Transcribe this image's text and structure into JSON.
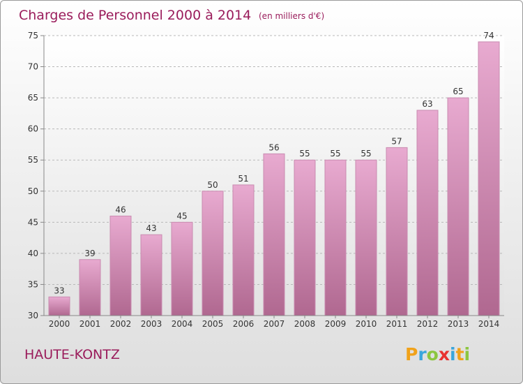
{
  "title": "Charges de Personnel 2000 à 2014",
  "subtitle": "(en milliers d'€)",
  "location": "HAUTE-KONTZ",
  "logo": {
    "letters": [
      "P",
      "r",
      "o",
      "x",
      "i",
      "t",
      "i"
    ],
    "colors": [
      "#f0a21a",
      "#3aa6dc",
      "#8cc63f",
      "#e8312f",
      "#3aa6dc",
      "#f0a21a",
      "#8cc63f"
    ]
  },
  "colors": {
    "bar_top": "#e8aad0",
    "bar_bottom": "#b06890",
    "bar_edge": "#c98bb0",
    "text_accent": "#9a1c5b"
  },
  "chart_data": {
    "type": "bar",
    "categories": [
      "2000",
      "2001",
      "2002",
      "2003",
      "2004",
      "2005",
      "2006",
      "2007",
      "2008",
      "2009",
      "2010",
      "2011",
      "2012",
      "2013",
      "2014"
    ],
    "values": [
      33,
      39,
      46,
      43,
      45,
      50,
      51,
      56,
      55,
      55,
      55,
      57,
      63,
      65,
      74
    ],
    "data_labels": [
      "33",
      "39",
      "46",
      "43",
      "45",
      "50",
      "51",
      "56",
      "55",
      "55",
      "55",
      "57",
      "63",
      "65",
      "74"
    ],
    "ylim": [
      30,
      75
    ],
    "yticks": [
      30,
      35,
      40,
      45,
      50,
      55,
      60,
      65,
      70,
      75
    ],
    "grid": true,
    "title": "Charges de Personnel 2000 à 2014",
    "xlabel": "",
    "ylabel": ""
  }
}
